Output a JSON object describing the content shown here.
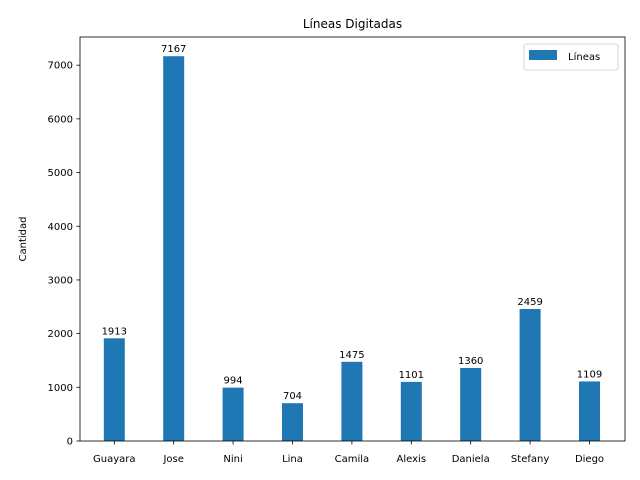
{
  "chart_data": {
    "type": "bar",
    "title": "Líneas Digitadas",
    "xlabel": "",
    "ylabel": "Cantidad",
    "categories": [
      "Guayara",
      "Jose",
      "Nini",
      "Lina",
      "Camila",
      "Alexis",
      "Daniela",
      "Stefany",
      "Diego"
    ],
    "series": [
      {
        "name": "Líneas",
        "values": [
          1913,
          7167,
          994,
          704,
          1475,
          1101,
          1360,
          2459,
          1109
        ],
        "color": "#1f77b4"
      }
    ],
    "yticks": [
      0,
      1000,
      2000,
      3000,
      4000,
      5000,
      6000,
      7000
    ],
    "ylim": [
      0,
      7525
    ],
    "grid": false,
    "legend_position": "top-right",
    "data_labels": true
  }
}
